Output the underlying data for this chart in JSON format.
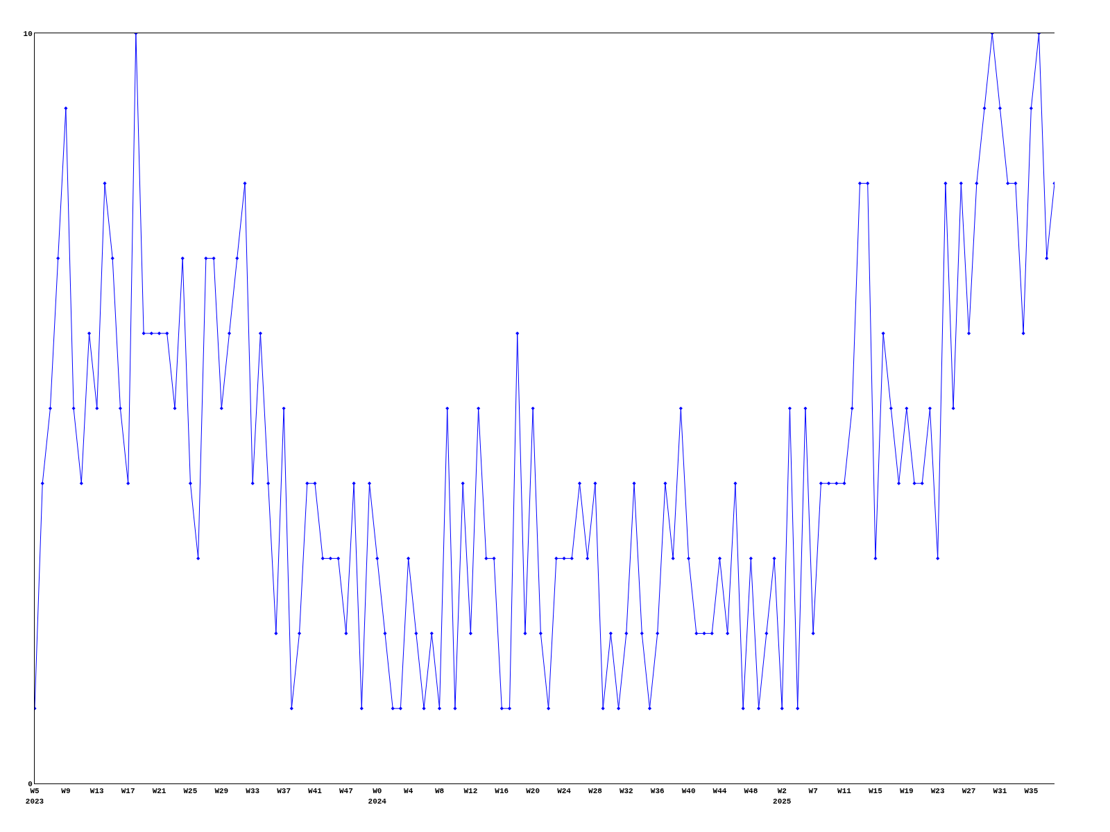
{
  "chart_data": {
    "type": "line",
    "categories": [
      "W5\n2023",
      null,
      null,
      null,
      "W9",
      null,
      null,
      null,
      "W13",
      null,
      null,
      null,
      "W17",
      null,
      null,
      null,
      "W21",
      null,
      null,
      null,
      "W25",
      null,
      null,
      null,
      "W29",
      null,
      null,
      null,
      "W33",
      null,
      null,
      null,
      "W37",
      null,
      null,
      null,
      "W41",
      null,
      null,
      null,
      "W47",
      null,
      null,
      null,
      "W0\n2024",
      null,
      null,
      null,
      "W4",
      null,
      null,
      null,
      "W8",
      null,
      null,
      null,
      "W12",
      null,
      null,
      null,
      "W16",
      null,
      null,
      null,
      "W20",
      null,
      null,
      null,
      "W24",
      null,
      null,
      null,
      "W28",
      null,
      null,
      null,
      "W32",
      null,
      null,
      null,
      "W36",
      null,
      null,
      null,
      "W40",
      null,
      null,
      null,
      "W44",
      null,
      null,
      null,
      "W48",
      null,
      null,
      null,
      "W2\n2025",
      null,
      null,
      null,
      "W7",
      null,
      null,
      null,
      "W11",
      null,
      null,
      null,
      "W15",
      null,
      null,
      null,
      "W19",
      null,
      null,
      null,
      "W23",
      null,
      null,
      null,
      "W27",
      null,
      null,
      null,
      "W31",
      null,
      null,
      null,
      "W35",
      null,
      null,
      null
    ],
    "series": [
      {
        "color": "#0000ff",
        "values": [
          1,
          4,
          5,
          7,
          9,
          5,
          4,
          6,
          5,
          8,
          7,
          5,
          4,
          10,
          6,
          6,
          6,
          6,
          5,
          7,
          4,
          3,
          7,
          7,
          5,
          6,
          7,
          8,
          4,
          6,
          4,
          2,
          5,
          1,
          2,
          4,
          4,
          3,
          3,
          3,
          2,
          4,
          1,
          4,
          3,
          2,
          1,
          1,
          3,
          2,
          1,
          2,
          1,
          5,
          1,
          4,
          2,
          5,
          3,
          3,
          1,
          1,
          6,
          2,
          5,
          2,
          1,
          3,
          3,
          3,
          4,
          3,
          4,
          1,
          2,
          1,
          2,
          4,
          2,
          1,
          2,
          4,
          3,
          5,
          3,
          2,
          2,
          2,
          3,
          2,
          4,
          1,
          3,
          1,
          2,
          3,
          1,
          5,
          1,
          5,
          2,
          4,
          4,
          4,
          4,
          5,
          8,
          8,
          3,
          6,
          5,
          4,
          5,
          4,
          4,
          5,
          3,
          8,
          5,
          8,
          6,
          8,
          9,
          10,
          9,
          8,
          8,
          6,
          9,
          10,
          7,
          8
        ]
      }
    ],
    "ylim": [
      0,
      10
    ],
    "yticks": [
      0,
      10
    ],
    "grid": false,
    "marker": "diamond",
    "line_style": "solid"
  }
}
